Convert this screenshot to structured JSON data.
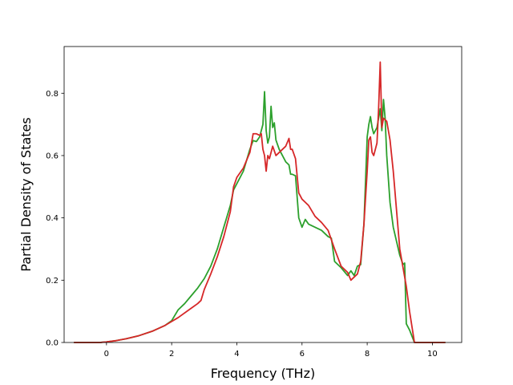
{
  "chart_data": {
    "type": "line",
    "title": "",
    "xlabel": "Frequency (THz)",
    "ylabel": "Partial Density of States",
    "xlim": [
      -1.3,
      10.9
    ],
    "ylim": [
      0,
      0.95
    ],
    "xticks": [
      0,
      2,
      4,
      6,
      8,
      10
    ],
    "yticks": [
      0.0,
      0.2,
      0.4,
      0.6,
      0.8
    ],
    "xtick_labels": [
      "0",
      "2",
      "4",
      "6",
      "8",
      "10"
    ],
    "ytick_labels": [
      "0.0",
      "0.2",
      "0.4",
      "0.6",
      "0.8"
    ],
    "grid": false,
    "series": [
      {
        "color": "#2ca02c",
        "x": [
          -1.0,
          -0.2,
          0.0,
          0.3,
          0.6,
          1.0,
          1.4,
          1.8,
          2.0,
          2.2,
          2.4,
          2.6,
          2.8,
          3.0,
          3.2,
          3.4,
          3.6,
          3.8,
          3.9,
          4.0,
          4.2,
          4.4,
          4.5,
          4.6,
          4.7,
          4.8,
          4.85,
          4.9,
          4.95,
          5.0,
          5.05,
          5.1,
          5.15,
          5.2,
          5.3,
          5.4,
          5.5,
          5.6,
          5.65,
          5.7,
          5.8,
          5.9,
          6.0,
          6.1,
          6.2,
          6.4,
          6.6,
          6.8,
          6.9,
          7.0,
          7.2,
          7.4,
          7.5,
          7.6,
          7.7,
          7.8,
          7.9,
          8.0,
          8.05,
          8.1,
          8.15,
          8.2,
          8.3,
          8.4,
          8.45,
          8.5,
          8.55,
          8.6,
          8.7,
          8.8,
          9.0,
          9.1,
          9.15,
          9.2,
          9.3,
          9.45,
          9.6,
          10.4
        ],
        "y": [
          0.0,
          0.0,
          0.002,
          0.006,
          0.012,
          0.022,
          0.036,
          0.055,
          0.07,
          0.105,
          0.125,
          0.15,
          0.175,
          0.205,
          0.245,
          0.3,
          0.37,
          0.44,
          0.49,
          0.51,
          0.55,
          0.62,
          0.648,
          0.645,
          0.66,
          0.7,
          0.805,
          0.68,
          0.64,
          0.66,
          0.758,
          0.69,
          0.705,
          0.65,
          0.62,
          0.6,
          0.58,
          0.57,
          0.54,
          0.54,
          0.535,
          0.4,
          0.37,
          0.395,
          0.38,
          0.37,
          0.36,
          0.34,
          0.335,
          0.26,
          0.24,
          0.215,
          0.23,
          0.215,
          0.245,
          0.25,
          0.38,
          0.66,
          0.7,
          0.725,
          0.69,
          0.67,
          0.69,
          0.75,
          0.68,
          0.78,
          0.72,
          0.6,
          0.45,
          0.37,
          0.28,
          0.25,
          0.255,
          0.06,
          0.04,
          0.0,
          0.0,
          0.0
        ]
      },
      {
        "color": "#d62728",
        "x": [
          -1.0,
          -0.2,
          0.0,
          0.3,
          0.6,
          1.0,
          1.4,
          1.8,
          2.2,
          2.6,
          2.8,
          2.9,
          3.0,
          3.2,
          3.4,
          3.6,
          3.8,
          3.9,
          4.0,
          4.2,
          4.4,
          4.5,
          4.6,
          4.7,
          4.75,
          4.8,
          4.85,
          4.9,
          4.95,
          5.0,
          5.1,
          5.2,
          5.3,
          5.4,
          5.5,
          5.6,
          5.65,
          5.7,
          5.8,
          5.9,
          6.0,
          6.2,
          6.4,
          6.6,
          6.8,
          6.9,
          7.0,
          7.2,
          7.4,
          7.5,
          7.6,
          7.7,
          7.8,
          7.9,
          8.0,
          8.05,
          8.1,
          8.15,
          8.2,
          8.3,
          8.35,
          8.4,
          8.45,
          8.5,
          8.6,
          8.7,
          8.8,
          9.0,
          9.1,
          9.2,
          9.3,
          9.45,
          9.6,
          10.4
        ],
        "y": [
          0.0,
          0.0,
          0.002,
          0.006,
          0.012,
          0.022,
          0.036,
          0.055,
          0.08,
          0.11,
          0.125,
          0.135,
          0.17,
          0.22,
          0.275,
          0.34,
          0.42,
          0.5,
          0.53,
          0.56,
          0.61,
          0.67,
          0.67,
          0.665,
          0.67,
          0.62,
          0.6,
          0.55,
          0.6,
          0.59,
          0.63,
          0.6,
          0.61,
          0.62,
          0.63,
          0.655,
          0.62,
          0.62,
          0.59,
          0.48,
          0.46,
          0.44,
          0.405,
          0.385,
          0.36,
          0.33,
          0.3,
          0.245,
          0.225,
          0.2,
          0.21,
          0.22,
          0.26,
          0.38,
          0.55,
          0.65,
          0.66,
          0.61,
          0.6,
          0.64,
          0.75,
          0.9,
          0.69,
          0.72,
          0.71,
          0.65,
          0.55,
          0.3,
          0.24,
          0.18,
          0.1,
          0.0,
          0.0,
          0.0
        ]
      }
    ]
  }
}
